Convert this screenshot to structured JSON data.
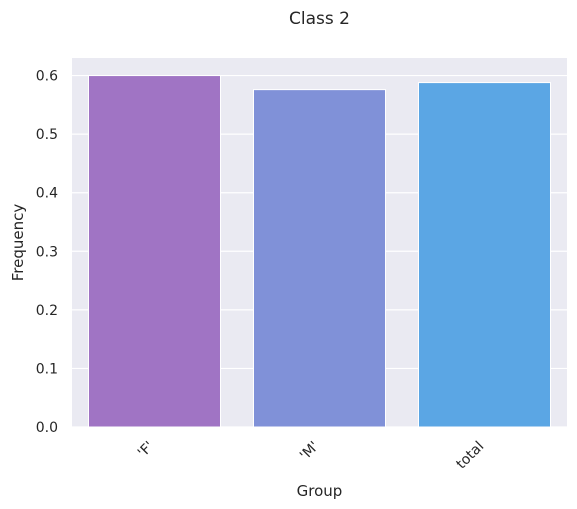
{
  "chart_data": {
    "type": "bar",
    "title": "Class 2",
    "xlabel": "Group",
    "ylabel": "Frequency",
    "categories": [
      "'F'",
      "'M'",
      "total"
    ],
    "values": [
      0.6,
      0.576,
      0.588
    ],
    "ylim": [
      0,
      0.63
    ],
    "yticks": [
      "0.0",
      "0.1",
      "0.2",
      "0.3",
      "0.4",
      "0.5",
      "0.6"
    ],
    "grid": true,
    "colors": {
      "background": "#eaeaf2",
      "grid": "#ffffff",
      "bars": [
        "#a074c4",
        "#8091d8",
        "#5ba6e4"
      ]
    }
  }
}
